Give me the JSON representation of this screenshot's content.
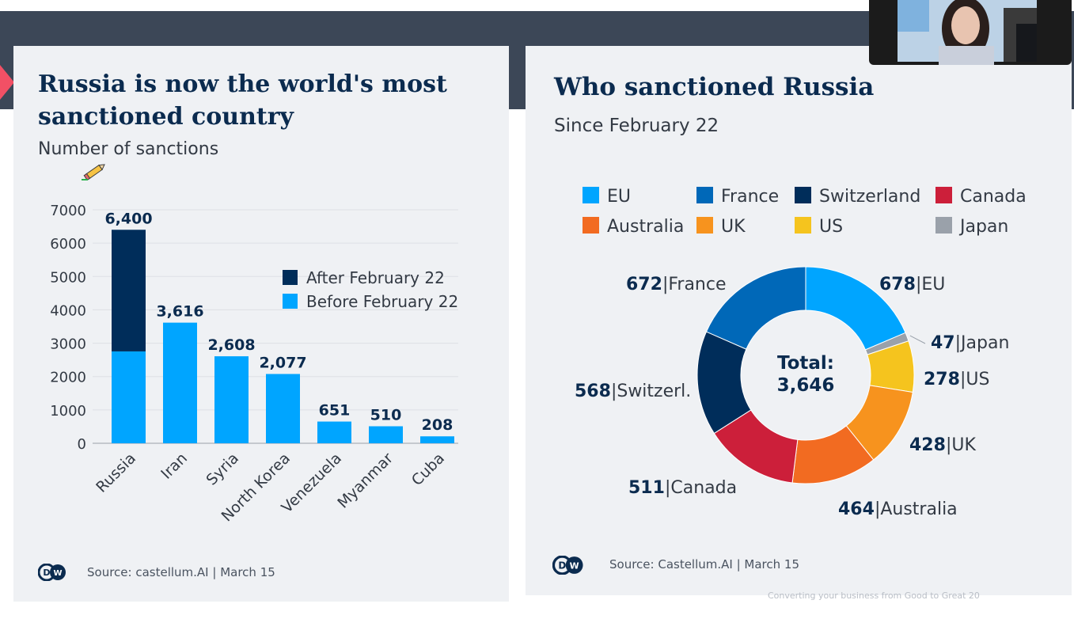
{
  "left_panel": {
    "title": "Russia is now the world's most sanctioned country",
    "subtitle": "Number of sanctions",
    "source": "Source: castellum.AI | March 15",
    "logo": "DW"
  },
  "right_panel": {
    "title": "Who sanctioned Russia",
    "subtitle": "Since February 22",
    "source": "Source: Castellum.AI | March 15",
    "logo": "DW"
  },
  "footer_text": "Converting your business from Good to Great   20",
  "icons": {
    "pencil": "pencil-icon",
    "logo": "dw-logo-icon"
  },
  "chart_data": [
    {
      "type": "bar",
      "stacked": true,
      "categories": [
        "Russia",
        "Iran",
        "Syria",
        "North Korea",
        "Venezuela",
        "Myanmar",
        "Cuba"
      ],
      "series": [
        {
          "name": "Before February 22",
          "values": [
            2754,
            3616,
            2608,
            2077,
            651,
            510,
            208
          ],
          "color": "#00a5ff"
        },
        {
          "name": "After February 22",
          "values": [
            3646,
            0,
            0,
            0,
            0,
            0,
            0
          ],
          "color": "#002d5a"
        }
      ],
      "totals_labels": [
        "6,400",
        "3,616",
        "2,608",
        "2,077",
        "651",
        "510",
        "208"
      ],
      "ylim": [
        0,
        7000
      ],
      "yticks": [
        0,
        1000,
        2000,
        3000,
        4000,
        5000,
        6000,
        7000
      ],
      "grid": true,
      "legend_position": "top-right",
      "legend": [
        {
          "label": "After February 22",
          "color": "#002d5a"
        },
        {
          "label": "Before February 22",
          "color": "#00a5ff"
        }
      ]
    },
    {
      "type": "pie",
      "donut": true,
      "center_label": [
        "Total:",
        "3,646"
      ],
      "slices": [
        {
          "name": "EU",
          "value": 678,
          "value_label": "678",
          "label": "EU",
          "color": "#00a5ff"
        },
        {
          "name": "Japan",
          "value": 47,
          "value_label": "47",
          "label": "Japan",
          "color": "#9aa1aa"
        },
        {
          "name": "US",
          "value": 278,
          "value_label": "278",
          "label": "US",
          "color": "#f5c41e"
        },
        {
          "name": "UK",
          "value": 428,
          "value_label": "428",
          "label": "UK",
          "color": "#f7931e"
        },
        {
          "name": "Australia",
          "value": 464,
          "value_label": "464",
          "label": "Australia",
          "color": "#f26b21"
        },
        {
          "name": "Canada",
          "value": 511,
          "value_label": "511",
          "label": "Canada",
          "color": "#cc1f3a"
        },
        {
          "name": "Switzerland",
          "value": 568,
          "value_label": "568",
          "label": "Switzerl.",
          "color": "#002d5a"
        },
        {
          "name": "France",
          "value": 672,
          "value_label": "672",
          "label": "France",
          "color": "#0068b8"
        }
      ],
      "legend_position": "top",
      "legend": [
        {
          "label": "EU",
          "color": "#00a5ff"
        },
        {
          "label": "France",
          "color": "#0068b8"
        },
        {
          "label": "Switzerland",
          "color": "#002d5a"
        },
        {
          "label": "Canada",
          "color": "#cc1f3a"
        },
        {
          "label": "Australia",
          "color": "#f26b21"
        },
        {
          "label": "UK",
          "color": "#f7931e"
        },
        {
          "label": "US",
          "color": "#f5c41e"
        },
        {
          "label": "Japan",
          "color": "#9aa1aa"
        }
      ]
    }
  ]
}
